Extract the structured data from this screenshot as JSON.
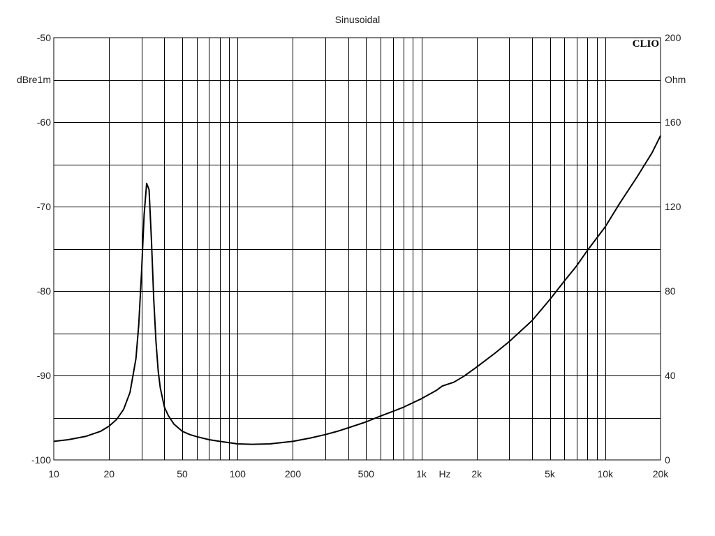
{
  "chart_data": {
    "type": "line",
    "title": "Sinusoidal",
    "brand": "CLIO",
    "x_axis": {
      "scale": "log",
      "range": [
        10,
        20000
      ],
      "unit_label": "Hz",
      "ticks": [
        {
          "value": 10,
          "label": "10"
        },
        {
          "value": 20,
          "label": "20"
        },
        {
          "value": 50,
          "label": "50"
        },
        {
          "value": 100,
          "label": "100"
        },
        {
          "value": 200,
          "label": "200"
        },
        {
          "value": 500,
          "label": "500"
        },
        {
          "value": 1000,
          "label": "1k"
        },
        {
          "value": 2000,
          "label": "2k"
        },
        {
          "value": 5000,
          "label": "5k"
        },
        {
          "value": 10000,
          "label": "10k"
        },
        {
          "value": 20000,
          "label": "20k"
        }
      ]
    },
    "y_left": {
      "unit_label": "dBre1m",
      "range": [
        -100,
        -50
      ],
      "ticks": [
        "-50",
        "-60",
        "-70",
        "-80",
        "-90",
        "-100"
      ]
    },
    "y_right": {
      "unit_label": "Ohm",
      "range": [
        0,
        200
      ],
      "ticks": [
        "200",
        "160",
        "120",
        "80",
        "40",
        "0"
      ]
    },
    "grid": true,
    "series": [
      {
        "axis": "right",
        "x": [
          10,
          12,
          15,
          18,
          20,
          22,
          24,
          26,
          28,
          29,
          30,
          31,
          32,
          33,
          34,
          35,
          36,
          37,
          38,
          40,
          42,
          45,
          50,
          55,
          60,
          70,
          80,
          100,
          120,
          150,
          200,
          250,
          300,
          350,
          400,
          500,
          600,
          700,
          800,
          1000,
          1200,
          1300,
          1500,
          1700,
          2000,
          2500,
          3000,
          4000,
          5000,
          6000,
          7000,
          8000,
          10000,
          12000,
          15000,
          18000,
          20000
        ],
        "y": [
          8.8,
          9.6,
          11.2,
          13.6,
          16,
          19.2,
          24,
          32,
          48,
          64,
          88,
          116,
          131,
          128,
          104,
          76,
          56,
          42,
          34,
          25,
          21,
          17,
          13.6,
          12,
          11,
          9.6,
          8.8,
          7.6,
          7.4,
          7.6,
          8.8,
          10.4,
          12,
          13.6,
          15.2,
          18,
          20.8,
          23,
          25,
          29,
          32.8,
          35,
          36.8,
          39.6,
          44,
          50.4,
          56,
          66,
          76,
          84.8,
          92,
          99.2,
          110.4,
          121.6,
          134.4,
          145.6,
          153.6
        ]
      }
    ]
  }
}
